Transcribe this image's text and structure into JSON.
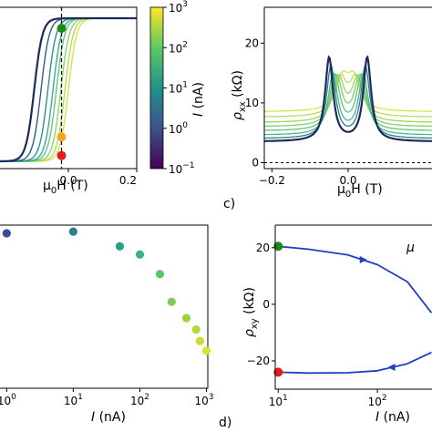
{
  "chart_data": [
    {
      "panel": "a",
      "type": "line",
      "xlabel_main": "μ",
      "xlabel_sub": "0",
      "xlabel_rest": "H (T)",
      "x_ticks": [
        "0.0",
        "0.2"
      ],
      "xlim": [
        -0.2,
        0.2
      ],
      "curve_hc_T": [
        0.0,
        -0.01,
        -0.022,
        -0.035,
        -0.045,
        -0.06,
        -0.08,
        -0.1
      ],
      "curve_colors": [
        "#d4e44a",
        "#b7de5a",
        "#8fd46d",
        "#64c883",
        "#3ba896",
        "#2f8f90",
        "#2f5f8b",
        "#1e2a5a"
      ],
      "dashed_marker_x": -0.02,
      "markers": [
        {
          "state": "green",
          "x": -0.02,
          "y_norm": 0.93,
          "color": "#1a8a1a"
        },
        {
          "state": "orange",
          "x": -0.02,
          "y_norm": 0.17,
          "color": "#f5a623"
        },
        {
          "state": "red",
          "x": -0.02,
          "y_norm": 0.04,
          "color": "#e41a1c"
        }
      ],
      "colorbar": {
        "label_main": "I",
        "label_rest": " (nA)",
        "ticks": [
          {
            "base": "10",
            "exp": "3",
            "log": 3
          },
          {
            "base": "10",
            "exp": "2",
            "log": 2
          },
          {
            "base": "10",
            "exp": "1",
            "log": 1
          },
          {
            "base": "10",
            "exp": "0",
            "log": 0
          },
          {
            "base": "10",
            "exp": "−1",
            "log": -1
          }
        ],
        "range_log": [
          -1,
          3
        ],
        "stops": [
          "#440154",
          "#3b528b",
          "#21918c",
          "#5ec962",
          "#fde725"
        ]
      }
    },
    {
      "panel": "b",
      "type": "line",
      "ylabel_main": "ρ",
      "ylabel_sub": "xx",
      "ylabel_rest": " (kΩ)",
      "xlabel_main": "μ",
      "xlabel_sub": "0",
      "xlabel_rest": "H (T)",
      "x_ticks": [
        "−0.2",
        "0.0"
      ],
      "x_tick_values": [
        -0.2,
        0.0
      ],
      "y_ticks": [
        "0",
        "10",
        "20"
      ],
      "y_tick_values": [
        0,
        10,
        20
      ],
      "xlim": [
        -0.22,
        0.22
      ],
      "ylim": [
        -1,
        26
      ],
      "baseline_dashed": 0,
      "curves": [
        {
          "peak_T": 0.015,
          "height_kohm": 5.3,
          "width_T": 0.04,
          "color": "#d4e44a"
        },
        {
          "peak_T": 0.02,
          "height_kohm": 6.3,
          "width_T": 0.038,
          "color": "#b7de5a"
        },
        {
          "peak_T": 0.025,
          "height_kohm": 7.4,
          "width_T": 0.036,
          "color": "#9bd861"
        },
        {
          "peak_T": 0.03,
          "height_kohm": 8.4,
          "width_T": 0.034,
          "color": "#7fcf6f"
        },
        {
          "peak_T": 0.035,
          "height_kohm": 9.4,
          "width_T": 0.032,
          "color": "#63c47e"
        },
        {
          "peak_T": 0.04,
          "height_kohm": 10.4,
          "width_T": 0.03,
          "color": "#49b98a"
        },
        {
          "peak_T": 0.045,
          "height_kohm": 12.4,
          "width_T": 0.028,
          "color": "#2f7d8c"
        },
        {
          "peak_T": 0.05,
          "height_kohm": 14.4,
          "width_T": 0.025,
          "color": "#1e2a5a"
        }
      ],
      "baseline_kohm": [
        8.5,
        7.6,
        6.7,
        6.0,
        5.3,
        4.6,
        4.0,
        3.5
      ]
    },
    {
      "panel": "c",
      "type": "scatter",
      "xlabel_main": "I",
      "xlabel_rest": " (nA)",
      "x_ticks": [
        {
          "base": "10",
          "exp": "0",
          "log": 0
        },
        {
          "base": "10",
          "exp": "1",
          "log": 1
        },
        {
          "base": "10",
          "exp": "2",
          "log": 2
        },
        {
          "base": "10",
          "exp": "3",
          "log": 3
        }
      ],
      "xlim_log": [
        -0.1,
        3.02
      ],
      "ylim_norm": [
        0,
        1
      ],
      "points": [
        {
          "I_nA": 1,
          "y_norm": 0.95,
          "color": "#3b4c8c"
        },
        {
          "I_nA": 10,
          "y_norm": 0.96,
          "color": "#2d7f8e"
        },
        {
          "I_nA": 50,
          "y_norm": 0.87,
          "color": "#25a387"
        },
        {
          "I_nA": 100,
          "y_norm": 0.82,
          "color": "#39b37b"
        },
        {
          "I_nA": 200,
          "y_norm": 0.7,
          "color": "#5cc466"
        },
        {
          "I_nA": 300,
          "y_norm": 0.53,
          "color": "#7fce53"
        },
        {
          "I_nA": 500,
          "y_norm": 0.43,
          "color": "#97d543"
        },
        {
          "I_nA": 700,
          "y_norm": 0.36,
          "color": "#b0dc3a"
        },
        {
          "I_nA": 800,
          "y_norm": 0.29,
          "color": "#c5e034"
        },
        {
          "I_nA": 1000,
          "y_norm": 0.23,
          "color": "#d9e32f"
        }
      ]
    },
    {
      "panel": "d",
      "type": "line",
      "ylabel_main": "ρ",
      "ylabel_sub": "xy",
      "ylabel_rest": " (kΩ)",
      "xlabel_main": "I",
      "xlabel_rest": " (nA)",
      "x_ticks": [
        {
          "base": "10",
          "exp": "1",
          "log": 1
        },
        {
          "base": "10",
          "exp": "2",
          "log": 2
        }
      ],
      "y_ticks": [
        "20",
        "0",
        "−20"
      ],
      "y_tick_values": [
        20,
        0,
        -20
      ],
      "xlim_log": [
        0.97,
        2.55
      ],
      "ylim": [
        -30,
        28
      ],
      "corner_symbol": "μ",
      "upper_branch": {
        "I_nA": [
          10,
          20,
          50,
          100,
          200,
          350
        ],
        "rho_kohm": [
          20.5,
          19.5,
          17.5,
          14.0,
          8.0,
          -3.0
        ]
      },
      "lower_branch": {
        "I_nA": [
          10,
          20,
          50,
          100,
          200,
          350
        ],
        "rho_kohm": [
          -24.0,
          -24.3,
          -24.2,
          -23.5,
          -21.0,
          -17.0
        ]
      },
      "markers": [
        {
          "state": "green",
          "I_nA": 10,
          "rho_kohm": 20.5,
          "color": "#1a8a1a"
        },
        {
          "state": "red",
          "I_nA": 10,
          "rho_kohm": -24.0,
          "color": "#e41a1c"
        }
      ],
      "line_color": "#1f3fc2"
    }
  ],
  "panel_labels": {
    "c": "c)",
    "d": "d)"
  }
}
